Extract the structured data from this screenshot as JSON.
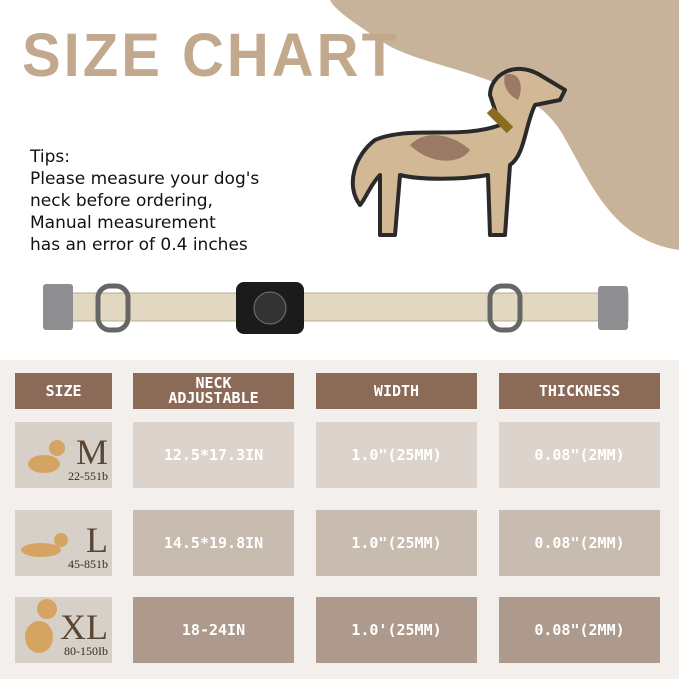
{
  "title": "SIZE CHART",
  "tips": [
    "Tips:",
    "Please measure your dog's",
    "neck before ordering,",
    "Manual measurement",
    "has an error of 0.4 inches"
  ],
  "table": {
    "headers": [
      "SIZE",
      "NECK ADJUSTABLE",
      "WIDTH",
      "THICKNESS"
    ],
    "rows": [
      {
        "size": "M",
        "weight": "22-551b",
        "neck": "12.5*17.3IN",
        "width": "1.0\"(25MM)",
        "thickness": "0.08\"(2MM)"
      },
      {
        "size": "L",
        "weight": "45-851b",
        "neck": "14.5*19.8IN",
        "width": "1.0\"(25MM)",
        "thickness": "0.08\"(2MM)"
      },
      {
        "size": "XL",
        "weight": "80-150Ib",
        "neck": "18-24IN",
        "width": "1.0'(25MM)",
        "thickness": "0.08\"(2MM)"
      }
    ]
  },
  "colors": {
    "header": "#8b6b58",
    "accent": "#c2a98d",
    "row1": "#dcd3cd",
    "row2": "#c8bbb0",
    "row3": "#ad9a8d"
  }
}
